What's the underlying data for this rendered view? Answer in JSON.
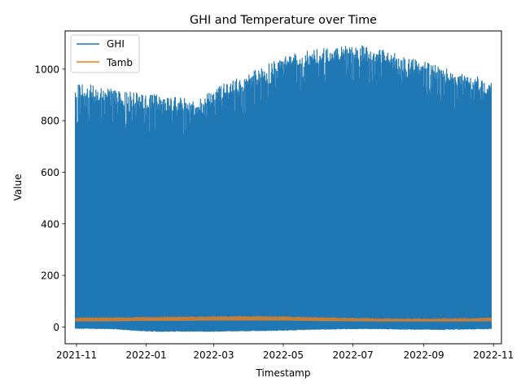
{
  "chart_data": {
    "type": "line",
    "title": "GHI and Temperature over Time",
    "xlabel": "Timestamp",
    "ylabel": "Value",
    "xlim": [
      "2021-10-22",
      "2022-11-08"
    ],
    "ylim": [
      -65,
      1148
    ],
    "x_ticks": [
      "2021-11",
      "2022-01",
      "2022-03",
      "2022-05",
      "2022-07",
      "2022-09",
      "2022-11"
    ],
    "y_ticks": [
      0,
      200,
      400,
      600,
      800,
      1000
    ],
    "legend_position": "upper left",
    "grid": false,
    "x_range_data": [
      "2021-10-31",
      "2022-10-30"
    ],
    "series": [
      {
        "name": "GHI",
        "color": "#1f77b4",
        "style": "dense daily cycle",
        "envelope_x": [
          "2021-10-31",
          "2021-11-15",
          "2021-12-01",
          "2021-12-15",
          "2022-01-01",
          "2022-01-15",
          "2022-02-01",
          "2022-02-15",
          "2022-03-01",
          "2022-03-15",
          "2022-04-01",
          "2022-04-15",
          "2022-05-01",
          "2022-05-15",
          "2022-06-01",
          "2022-06-15",
          "2022-07-01",
          "2022-07-15",
          "2022-08-01",
          "2022-08-15",
          "2022-09-01",
          "2022-09-15",
          "2022-10-01",
          "2022-10-15",
          "2022-10-30"
        ],
        "daily_max": [
          945,
          940,
          925,
          915,
          905,
          900,
          890,
          880,
          925,
          955,
          985,
          1015,
          1050,
          1065,
          1080,
          1085,
          1095,
          1090,
          1075,
          1045,
          1035,
          1010,
          990,
          975,
          960
        ],
        "night_min": [
          -5,
          -5,
          -6,
          -10,
          -15,
          -16,
          -16,
          -16,
          -16,
          -15,
          -14,
          -13,
          -12,
          -10,
          -8,
          -7,
          -6,
          -6,
          -7,
          -8,
          -8,
          -9,
          -8,
          -7,
          -6
        ]
      },
      {
        "name": "Tamb",
        "color": "#ff7f0e",
        "style": "narrow band",
        "envelope_x": [
          "2021-10-31",
          "2021-12-01",
          "2022-01-01",
          "2022-02-01",
          "2022-03-01",
          "2022-04-01",
          "2022-05-01",
          "2022-06-01",
          "2022-07-01",
          "2022-08-01",
          "2022-09-01",
          "2022-10-01",
          "2022-10-30"
        ],
        "low": [
          22,
          22,
          24,
          24,
          25,
          25,
          25,
          23,
          22,
          21,
          21,
          21,
          22
        ],
        "high": [
          35,
          36,
          38,
          39,
          40,
          41,
          40,
          37,
          34,
          32,
          32,
          33,
          35
        ]
      }
    ]
  }
}
